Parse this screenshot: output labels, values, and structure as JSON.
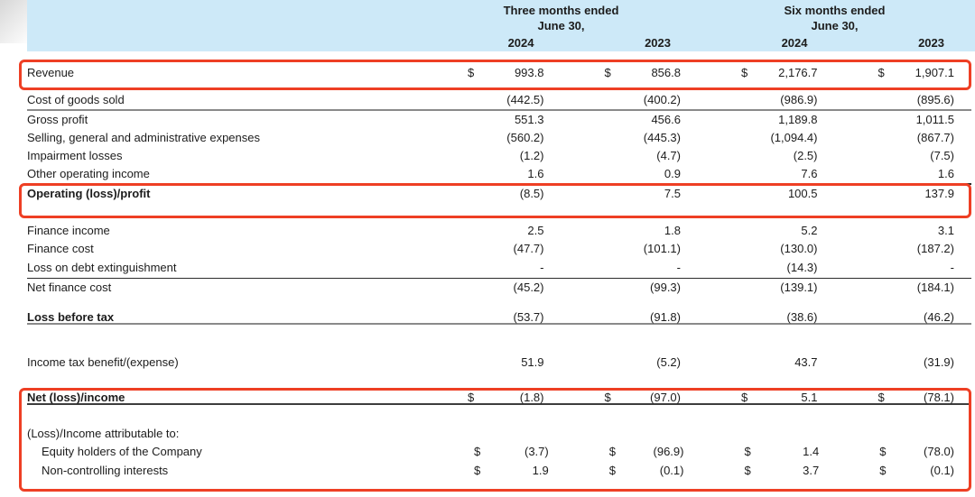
{
  "colors": {
    "header_bg": "#cde9f8",
    "highlight_border": "#ee3f24",
    "text": "#1c1c1c",
    "rule_gray": "#8a8a8a",
    "rule_dark": "#2b2b2b"
  },
  "currency_symbol": "$",
  "header": {
    "groups": [
      {
        "title": "Three months ended",
        "subtitle": "June 30,",
        "years": [
          "2024",
          "2023"
        ]
      },
      {
        "title": "Six months ended",
        "subtitle": "June 30,",
        "years": [
          "2024",
          "2023"
        ]
      }
    ]
  },
  "rows": [
    {
      "label": "Revenue",
      "dollar": true,
      "bold": false,
      "indent": false,
      "values": [
        "993.8",
        "856.8",
        "2,176.7",
        "1,907.1"
      ]
    },
    {
      "label": "Cost of goods sold",
      "dollar": false,
      "bold": false,
      "indent": false,
      "values": [
        "(442.5)",
        "(400.2)",
        "(986.9)",
        "(895.6)"
      ]
    },
    {
      "label": "Gross profit",
      "dollar": false,
      "bold": false,
      "indent": false,
      "values": [
        "551.3",
        "456.6",
        "1,189.8",
        "1,011.5"
      ]
    },
    {
      "label": "Selling, general and administrative expenses",
      "dollar": false,
      "bold": false,
      "indent": false,
      "values": [
        "(560.2)",
        "(445.3)",
        "(1,094.4)",
        "(867.7)"
      ]
    },
    {
      "label": "Impairment losses",
      "dollar": false,
      "bold": false,
      "indent": false,
      "values": [
        "(1.2)",
        "(4.7)",
        "(2.5)",
        "(7.5)"
      ]
    },
    {
      "label": "Other operating income",
      "dollar": false,
      "bold": false,
      "indent": false,
      "values": [
        "1.6",
        "0.9",
        "7.6",
        "1.6"
      ]
    },
    {
      "label": "Operating (loss)/profit",
      "dollar": false,
      "bold": true,
      "indent": false,
      "values": [
        "(8.5)",
        "7.5",
        "100.5",
        "137.9"
      ]
    },
    {
      "label": "Finance income",
      "dollar": false,
      "bold": false,
      "indent": false,
      "values": [
        "2.5",
        "1.8",
        "5.2",
        "3.1"
      ]
    },
    {
      "label": "Finance cost",
      "dollar": false,
      "bold": false,
      "indent": false,
      "values": [
        "(47.7)",
        "(101.1)",
        "(130.0)",
        "(187.2)"
      ]
    },
    {
      "label": "Loss on debt extinguishment",
      "dollar": false,
      "bold": false,
      "indent": false,
      "values": [
        "-",
        "-",
        "(14.3)",
        "-"
      ]
    },
    {
      "label": "Net finance cost",
      "dollar": false,
      "bold": false,
      "indent": false,
      "values": [
        "(45.2)",
        "(99.3)",
        "(139.1)",
        "(184.1)"
      ]
    },
    {
      "label": "Loss before tax",
      "dollar": false,
      "bold": true,
      "indent": false,
      "values": [
        "(53.7)",
        "(91.8)",
        "(38.6)",
        "(46.2)"
      ]
    },
    {
      "label": "Income tax benefit/(expense)",
      "dollar": false,
      "bold": false,
      "indent": false,
      "values": [
        "51.9",
        "(5.2)",
        "43.7",
        "(31.9)"
      ]
    },
    {
      "label": "Net (loss)/income",
      "dollar": true,
      "bold": true,
      "indent": false,
      "values": [
        "(1.8)",
        "(97.0)",
        "5.1",
        "(78.1)"
      ]
    },
    {
      "label": "(Loss)/Income attributable to:",
      "dollar": false,
      "bold": false,
      "indent": false,
      "values": [
        "",
        "",
        "",
        ""
      ]
    },
    {
      "label": "Equity holders of the Company",
      "dollar": true,
      "bold": false,
      "indent": true,
      "values": [
        "(3.7)",
        "(96.9)",
        "1.4",
        "(78.0)"
      ]
    },
    {
      "label": "Non-controlling interests",
      "dollar": true,
      "bold": false,
      "indent": true,
      "values": [
        "1.9",
        "(0.1)",
        "3.7",
        "(0.1)"
      ]
    }
  ],
  "highlights": [
    {
      "covers": "Revenue row"
    },
    {
      "covers": "Operating (loss)/profit row"
    },
    {
      "covers": "Net (loss)/income and attribution rows"
    }
  ]
}
